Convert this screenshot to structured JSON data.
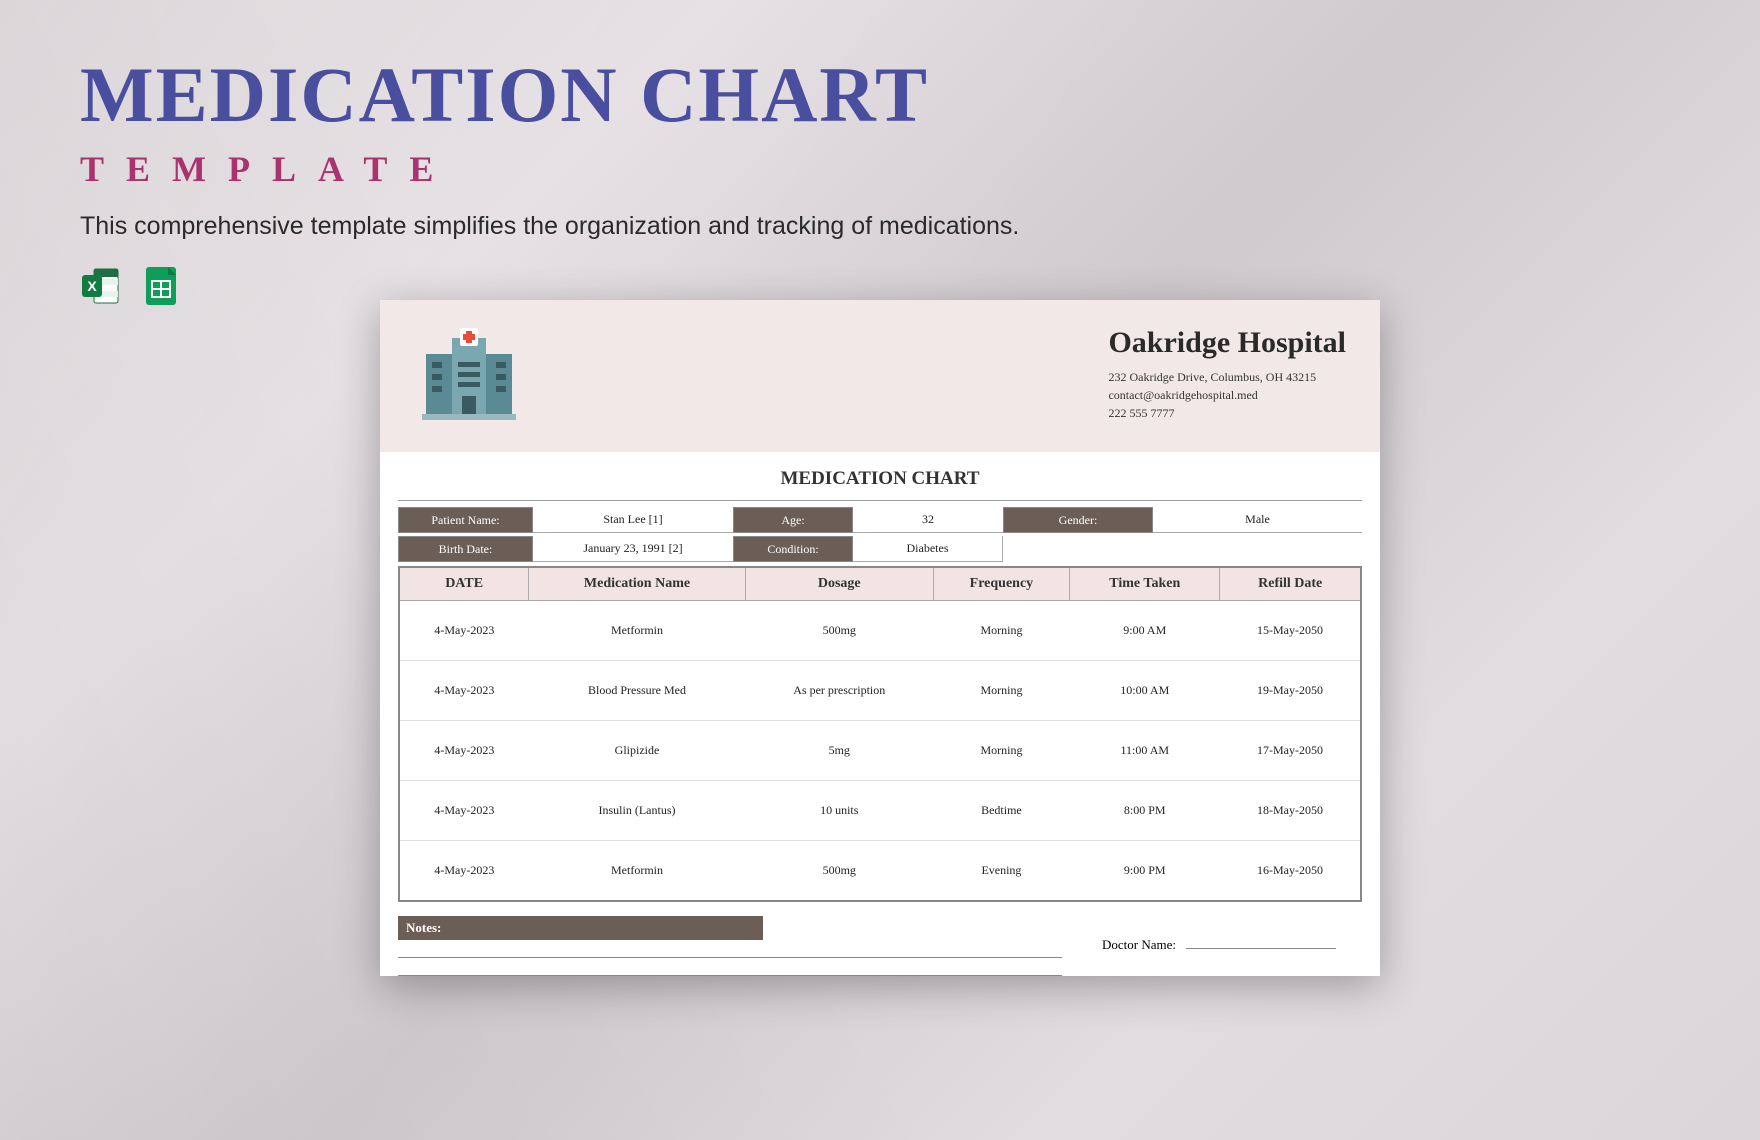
{
  "colors": {
    "title": "#4a4e9e",
    "subtitle": "#a8336f",
    "header_bg": "#f2e8e8",
    "label_bg": "#6b5e56",
    "th_bg": "#f2e4e2"
  },
  "page": {
    "title": "MEDICATION CHART",
    "subtitle": "TEMPLATE",
    "description": "This comprehensive template simplifies the organization and tracking of medications."
  },
  "hospital": {
    "name": "Oakridge Hospital",
    "address": "232 Oakridge Drive, Columbus, OH 43215",
    "email": "contact@oakridgehospital.med",
    "phone": "222 555 7777"
  },
  "chart_title": "MEDICATION CHART",
  "patient": {
    "labels": {
      "name": "Patient Name:",
      "age": "Age:",
      "gender": "Gender:",
      "birth": "Birth Date:",
      "condition": "Condition:"
    },
    "name": "Stan Lee [1]",
    "age": "32",
    "gender": "Male",
    "birth": "January 23, 1991 [2]",
    "condition": "Diabetes"
  },
  "table": {
    "columns": [
      "DATE",
      "Medication Name",
      "Dosage",
      "Frequency",
      "Time Taken",
      "Refill Date"
    ],
    "rows": [
      [
        "4-May-2023",
        "Metformin",
        "500mg",
        "Morning",
        "9:00 AM",
        "15-May-2050"
      ],
      [
        "4-May-2023",
        "Blood Pressure Med",
        "As per prescription",
        "Morning",
        "10:00 AM",
        "19-May-2050"
      ],
      [
        "4-May-2023",
        "Glipizide",
        "5mg",
        "Morning",
        "11:00 AM",
        "17-May-2050"
      ],
      [
        "4-May-2023",
        "Insulin (Lantus)",
        "10 units",
        "Bedtime",
        "8:00 PM",
        "18-May-2050"
      ],
      [
        "4-May-2023",
        "Metformin",
        "500mg",
        "Evening",
        "9:00 PM",
        "16-May-2050"
      ]
    ]
  },
  "notes_label": "Notes:",
  "doctor_label": "Doctor Name:"
}
